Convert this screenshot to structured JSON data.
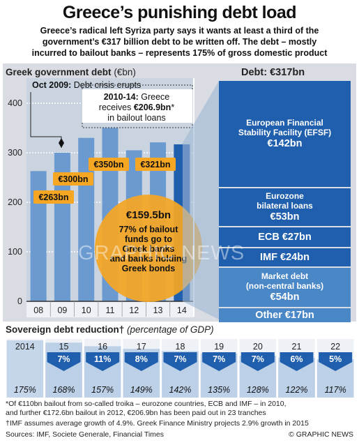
{
  "title": "Greece’s punishing debt load",
  "subtitle_lines": [
    "Greece’s radical left Syriza party says it wants at least a third of the",
    "government’s €317 billion debt to be written off. The debt – mostly",
    "incurred to bailout banks – represents 175% of gross domestic product"
  ],
  "colors": {
    "accent_blue": "#1f5fad",
    "light_blue": "#4a87c6",
    "bar_blue": "#6b9ad0",
    "orange": "#f5a623",
    "panel_grey": "#d9dde3"
  },
  "chart_data": [
    {
      "type": "bar",
      "title": "Greek government debt",
      "title_unit": "(€bn)",
      "categories": [
        "08",
        "09",
        "10",
        "11",
        "12",
        "13",
        "14"
      ],
      "values": [
        263,
        300,
        330,
        350,
        305,
        321,
        317
      ],
      "ylim": [
        0,
        450
      ],
      "yticks": [
        0,
        100,
        200,
        300,
        400
      ],
      "labeled_values": [
        {
          "index": 0,
          "label": "€263bn"
        },
        {
          "index": 1,
          "label": "€300bn"
        },
        {
          "index": 3,
          "label": "€350bn"
        },
        {
          "index": 5,
          "label": "€321bn"
        }
      ],
      "grid": true,
      "annotations": {
        "crisis_text_bold": "Oct 2009:",
        "crisis_text": " Debt crisis erupts",
        "bailout_line1_bold": "2010-14:",
        "bailout_line1": " Greece",
        "bailout_line2_pre": "receives ",
        "bailout_line2_bold": "€206.9bn",
        "bailout_line2_post": "*",
        "bailout_line3": "in bailout loans",
        "circle_value": "€159.5bn",
        "circle_lines": [
          "77% of bailout",
          "funds go to",
          "Greek banks",
          "and banks holding",
          "Greek bonds"
        ]
      }
    },
    {
      "type": "table",
      "title": "Debt: €317bn",
      "categories": [
        "European Financial Stability Facility (EFSF)",
        "Eurozone bilateral loans",
        "ECB",
        "IMF",
        "Market debt (non-central banks)",
        "Other"
      ],
      "values": [
        142,
        53,
        27,
        24,
        54,
        17
      ],
      "value_labels": [
        "€142bn",
        "€53bn",
        "€27bn",
        "€24bn",
        "€54bn",
        "€17bn"
      ]
    },
    {
      "type": "bar",
      "title": "Sovereign debt reduction†",
      "subtitle": "(percentage of GDP)",
      "categories": [
        "2014",
        "15",
        "16",
        "17",
        "18",
        "19",
        "20",
        "21",
        "22"
      ],
      "values": [
        175,
        168,
        157,
        149,
        142,
        135,
        128,
        122,
        117
      ],
      "value_labels": [
        "175%",
        "168%",
        "157%",
        "149%",
        "142%",
        "135%",
        "128%",
        "122%",
        "117%"
      ],
      "reductions": [
        "",
        "7%",
        "11%",
        "8%",
        "7%",
        "7%",
        "7%",
        "6%",
        "5%"
      ]
    }
  ],
  "debt_breakdown_display": [
    {
      "name_lines": [
        "European Financial",
        "Stability Facility (EFSF)"
      ],
      "value": "€142bn"
    },
    {
      "name_lines": [
        "Eurozone",
        "bilateral loans"
      ],
      "value": "€53bn"
    },
    {
      "name_lines": [
        "ECB €27bn"
      ],
      "value": ""
    },
    {
      "name_lines": [
        "IMF €24bn"
      ],
      "value": ""
    },
    {
      "name_lines": [
        "Market debt",
        "(non-central banks)"
      ],
      "value": "€54bn"
    },
    {
      "name_lines": [
        "Other €17bn"
      ],
      "value": ""
    }
  ],
  "footnotes": {
    "line1": "*Of €110bn bailout from so-called troika – eurozone countries, ECB and IMF – in 2010,",
    "line2": "and further €172.6bn bailout in 2012, €206.9bn has been paid out in 23 tranches",
    "line3": "†IMF assumes average growth of 4.9%. Greek Finance Ministry projects 2.9% growth in 2015",
    "sources": "Sources: IMF, Societe Generale, Financial Times",
    "credit": "© GRAPHIC NEWS"
  },
  "watermark": "GRAPHIC NEWS"
}
